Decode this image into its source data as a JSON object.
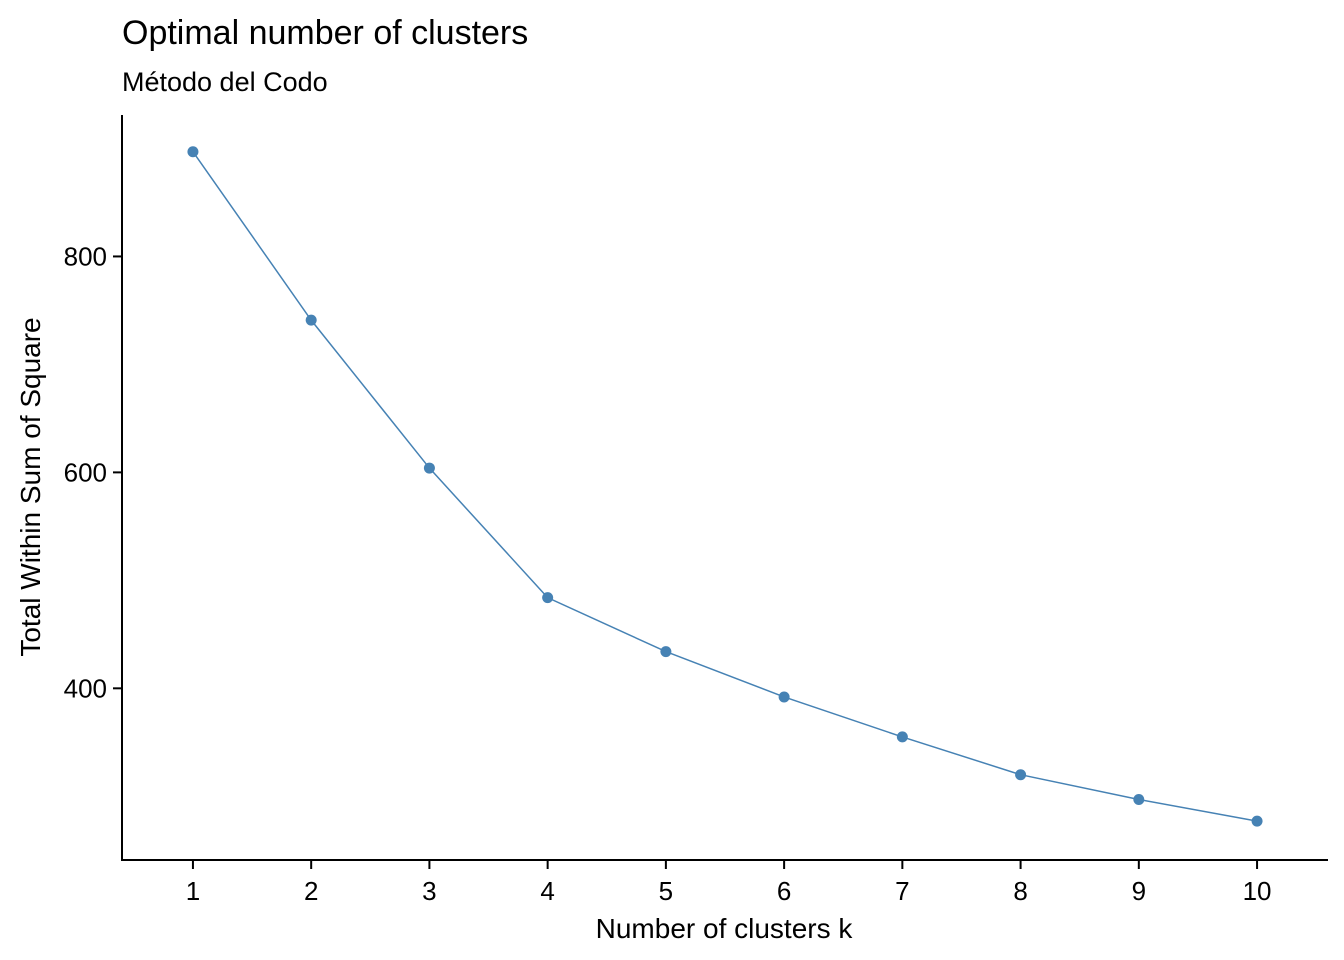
{
  "chart_data": {
    "type": "line",
    "title": "Optimal number of clusters",
    "subtitle": "Método del Codo",
    "xlabel": "Number of clusters k",
    "ylabel": "Total Within Sum of Square",
    "x": [
      1,
      2,
      3,
      4,
      5,
      6,
      7,
      8,
      9,
      10
    ],
    "x_tick_labels": [
      "1",
      "2",
      "3",
      "4",
      "5",
      "6",
      "7",
      "8",
      "9",
      "10"
    ],
    "y_ticks": [
      400,
      600,
      800
    ],
    "y_tick_labels": [
      "400",
      "600",
      "800"
    ],
    "series": [
      {
        "values": [
          897,
          741,
          604,
          484,
          434,
          392,
          355,
          320,
          297,
          277
        ],
        "color": "#4682B4"
      }
    ],
    "xlim": [
      0.4,
      10.6
    ],
    "ylim": [
      241,
      931
    ],
    "grid": false,
    "legend": "none"
  }
}
